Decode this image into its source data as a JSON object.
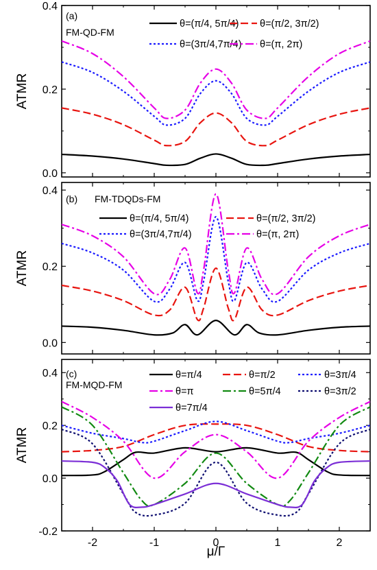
{
  "figure": {
    "xlabel": "μ/Γ",
    "ylabel": "ATMR"
  },
  "chart_data": [
    {
      "type": "line",
      "panel_label": "(a)",
      "system_label": "FM-QD-FM",
      "xlabel": "μ/Γ",
      "ylabel": "ATMR",
      "xlim": [
        -2.5,
        2.5
      ],
      "ylim": [
        -0.01,
        0.4
      ],
      "xticks": [
        -2,
        -1,
        0,
        1,
        2
      ],
      "yticks": [
        0.0,
        0.2,
        0.4
      ],
      "ytick_labels": [
        "0.0",
        "0.2",
        "0.4"
      ],
      "legend_position": "top",
      "series": [
        {
          "name": "θ=(π/4, 5π/4)",
          "color": "#000000",
          "dash": "solid",
          "x": [
            -2.5,
            -2.0,
            -1.5,
            -1.0,
            -0.8,
            -0.5,
            -0.25,
            0,
            0.25,
            0.5,
            0.8,
            1.0,
            1.5,
            2.0,
            2.5
          ],
          "y": [
            0.044,
            0.04,
            0.033,
            0.022,
            0.018,
            0.02,
            0.035,
            0.045,
            0.035,
            0.02,
            0.018,
            0.022,
            0.033,
            0.04,
            0.044
          ]
        },
        {
          "name": "θ=(π/2, 3π/2)",
          "color": "#e8140f",
          "dash": "dash",
          "x": [
            -2.5,
            -2.0,
            -1.5,
            -1.0,
            -0.8,
            -0.5,
            -0.25,
            0,
            0.25,
            0.5,
            0.8,
            1.0,
            1.5,
            2.0,
            2.5
          ],
          "y": [
            0.155,
            0.14,
            0.115,
            0.078,
            0.065,
            0.075,
            0.12,
            0.143,
            0.12,
            0.075,
            0.065,
            0.078,
            0.115,
            0.14,
            0.155
          ]
        },
        {
          "name": "θ=(3π/4,7π/4)",
          "color": "#1a1aff",
          "dash": "dot",
          "x": [
            -2.5,
            -2.0,
            -1.5,
            -1.0,
            -0.8,
            -0.5,
            -0.25,
            0,
            0.25,
            0.5,
            0.8,
            1.0,
            1.5,
            2.0,
            2.5
          ],
          "y": [
            0.265,
            0.24,
            0.195,
            0.135,
            0.114,
            0.13,
            0.19,
            0.22,
            0.19,
            0.13,
            0.114,
            0.135,
            0.195,
            0.24,
            0.265
          ]
        },
        {
          "name": "θ=(π, 2π)",
          "color": "#e600e6",
          "dash": "dashdot",
          "x": [
            -2.5,
            -2.0,
            -1.5,
            -1.0,
            -0.8,
            -0.5,
            -0.25,
            0,
            0.25,
            0.5,
            0.8,
            1.0,
            1.5,
            2.0,
            2.5
          ],
          "y": [
            0.315,
            0.285,
            0.23,
            0.155,
            0.13,
            0.15,
            0.215,
            0.248,
            0.215,
            0.15,
            0.13,
            0.155,
            0.23,
            0.285,
            0.315
          ]
        }
      ]
    },
    {
      "type": "line",
      "panel_label": "(b)",
      "system_label": "FM-TDQDs-FM",
      "xlabel": "μ/Γ",
      "ylabel": "ATMR",
      "xlim": [
        -2.5,
        2.5
      ],
      "ylim": [
        -0.03,
        0.42
      ],
      "xticks": [
        -2,
        -1,
        0,
        1,
        2
      ],
      "yticks": [
        0.0,
        0.2,
        0.4
      ],
      "ytick_labels": [
        "0.0",
        "0.2",
        "0.4"
      ],
      "legend_position": "top",
      "series": [
        {
          "name": "θ=(π/4, 5π/4)",
          "color": "#000000",
          "dash": "solid",
          "x": [
            -2.5,
            -2.0,
            -1.5,
            -1.0,
            -0.7,
            -0.5,
            -0.3,
            0,
            0.3,
            0.5,
            0.7,
            1.0,
            1.5,
            2.0,
            2.5
          ],
          "y": [
            0.043,
            0.04,
            0.032,
            0.02,
            0.025,
            0.047,
            0.02,
            0.058,
            0.02,
            0.047,
            0.025,
            0.02,
            0.032,
            0.04,
            0.043
          ]
        },
        {
          "name": "θ=(π/2, 3π/2)",
          "color": "#e8140f",
          "dash": "dash",
          "x": [
            -2.5,
            -2.0,
            -1.5,
            -1.0,
            -0.75,
            -0.5,
            -0.3,
            -0.2,
            0,
            0.2,
            0.3,
            0.5,
            0.75,
            1.0,
            1.5,
            2.0,
            2.5
          ],
          "y": [
            0.15,
            0.135,
            0.11,
            0.072,
            0.085,
            0.145,
            0.06,
            0.09,
            0.195,
            0.09,
            0.06,
            0.145,
            0.085,
            0.072,
            0.11,
            0.135,
            0.15
          ]
        },
        {
          "name": "θ=(3π/4,7π/4)",
          "color": "#1a1aff",
          "dash": "dot",
          "x": [
            -2.5,
            -2.0,
            -1.5,
            -1.0,
            -0.75,
            -0.5,
            -0.3,
            -0.2,
            0,
            0.2,
            0.3,
            0.5,
            0.75,
            1.0,
            1.5,
            2.0,
            2.5
          ],
          "y": [
            0.26,
            0.235,
            0.19,
            0.108,
            0.14,
            0.21,
            0.11,
            0.16,
            0.33,
            0.16,
            0.11,
            0.21,
            0.14,
            0.108,
            0.19,
            0.235,
            0.26
          ]
        },
        {
          "name": "θ=(π, 2π)",
          "color": "#e600e6",
          "dash": "dashdot",
          "x": [
            -2.5,
            -2.0,
            -1.5,
            -1.0,
            -0.75,
            -0.5,
            -0.3,
            -0.2,
            0,
            0.2,
            0.3,
            0.5,
            0.75,
            1.0,
            1.5,
            2.0,
            2.5
          ],
          "y": [
            0.31,
            0.28,
            0.225,
            0.128,
            0.165,
            0.248,
            0.13,
            0.19,
            0.39,
            0.19,
            0.13,
            0.248,
            0.165,
            0.128,
            0.225,
            0.28,
            0.31
          ]
        }
      ]
    },
    {
      "type": "line",
      "panel_label": "(c)",
      "system_label": "FM-MQD-FM",
      "xlabel": "μ/Γ",
      "ylabel": "ATMR",
      "xlim": [
        -2.5,
        2.5
      ],
      "ylim": [
        -0.2,
        0.45
      ],
      "xticks": [
        -2,
        -1,
        0,
        1,
        2
      ],
      "yticks": [
        -0.2,
        0.0,
        0.2,
        0.4
      ],
      "ytick_labels": [
        "-0.2",
        "0.0",
        "0.2",
        "0.4"
      ],
      "legend_position": "top",
      "series": [
        {
          "name": "θ=π/4",
          "color": "#000000",
          "dash": "solid",
          "x": [
            -2.5,
            -2.0,
            -1.8,
            -1.5,
            -1.3,
            -1.0,
            -0.5,
            0,
            0.5,
            1.0,
            1.3,
            1.5,
            1.8,
            2.0,
            2.5
          ],
          "y": [
            0.01,
            0.012,
            0.025,
            0.07,
            0.098,
            0.095,
            0.115,
            0.1,
            0.115,
            0.095,
            0.098,
            0.07,
            0.025,
            0.012,
            0.01
          ]
        },
        {
          "name": "θ=π/2",
          "color": "#e8140f",
          "dash": "dash",
          "x": [
            -2.5,
            -2.0,
            -1.5,
            -1.0,
            -0.5,
            0,
            0.5,
            1.0,
            1.5,
            2.0,
            2.5
          ],
          "y": [
            0.1,
            0.105,
            0.12,
            0.165,
            0.2,
            0.205,
            0.2,
            0.165,
            0.12,
            0.105,
            0.1
          ]
        },
        {
          "name": "θ=3π/4",
          "color": "#1a1aff",
          "dash": "dot",
          "x": [
            -2.5,
            -2.0,
            -1.5,
            -1.2,
            -1.0,
            -0.5,
            0,
            0.5,
            1.0,
            1.2,
            1.5,
            2.0,
            2.5
          ],
          "y": [
            0.2,
            0.17,
            0.15,
            0.135,
            0.14,
            0.18,
            0.215,
            0.18,
            0.14,
            0.135,
            0.15,
            0.17,
            0.2
          ]
        },
        {
          "name": "θ=π",
          "color": "#e600e6",
          "dash": "dashdot",
          "x": [
            -2.5,
            -2.0,
            -1.5,
            -1.0,
            -0.5,
            0,
            0.5,
            1.0,
            1.5,
            2.0,
            2.5
          ],
          "y": [
            0.29,
            0.23,
            0.14,
            0.0,
            0.1,
            0.165,
            0.1,
            0.0,
            0.14,
            0.23,
            0.29
          ]
        },
        {
          "name": "θ=5π/4",
          "color": "#128a12",
          "dash": "dashdot",
          "x": [
            -2.5,
            -2.0,
            -1.5,
            -1.2,
            -1.0,
            -0.5,
            0,
            0.5,
            1.0,
            1.2,
            1.5,
            2.0,
            2.5
          ],
          "y": [
            0.27,
            0.2,
            0.02,
            -0.085,
            -0.1,
            -0.02,
            0.095,
            -0.02,
            -0.1,
            -0.085,
            0.02,
            0.2,
            0.27
          ]
        },
        {
          "name": "θ=3π/2",
          "color": "#0d0d70",
          "dash": "dot",
          "x": [
            -2.5,
            -2.0,
            -1.5,
            -1.3,
            -1.0,
            -0.5,
            0,
            0.5,
            1.0,
            1.3,
            1.5,
            2.0,
            2.5
          ],
          "y": [
            0.185,
            0.13,
            -0.06,
            -0.13,
            -0.14,
            -0.095,
            0.06,
            -0.095,
            -0.14,
            -0.13,
            -0.06,
            0.13,
            0.185
          ]
        },
        {
          "name": "θ=7π/4",
          "color": "#7b2ed6",
          "dash": "solid",
          "x": [
            -2.5,
            -2.0,
            -1.8,
            -1.6,
            -1.4,
            -1.2,
            -1.0,
            -0.5,
            0,
            0.5,
            1.0,
            1.2,
            1.4,
            1.6,
            1.8,
            2.0,
            2.5
          ],
          "y": [
            0.065,
            0.06,
            0.04,
            -0.01,
            -0.1,
            -0.11,
            -0.1,
            -0.06,
            -0.02,
            -0.06,
            -0.1,
            -0.11,
            -0.1,
            -0.01,
            0.04,
            0.06,
            0.065
          ]
        }
      ]
    }
  ]
}
